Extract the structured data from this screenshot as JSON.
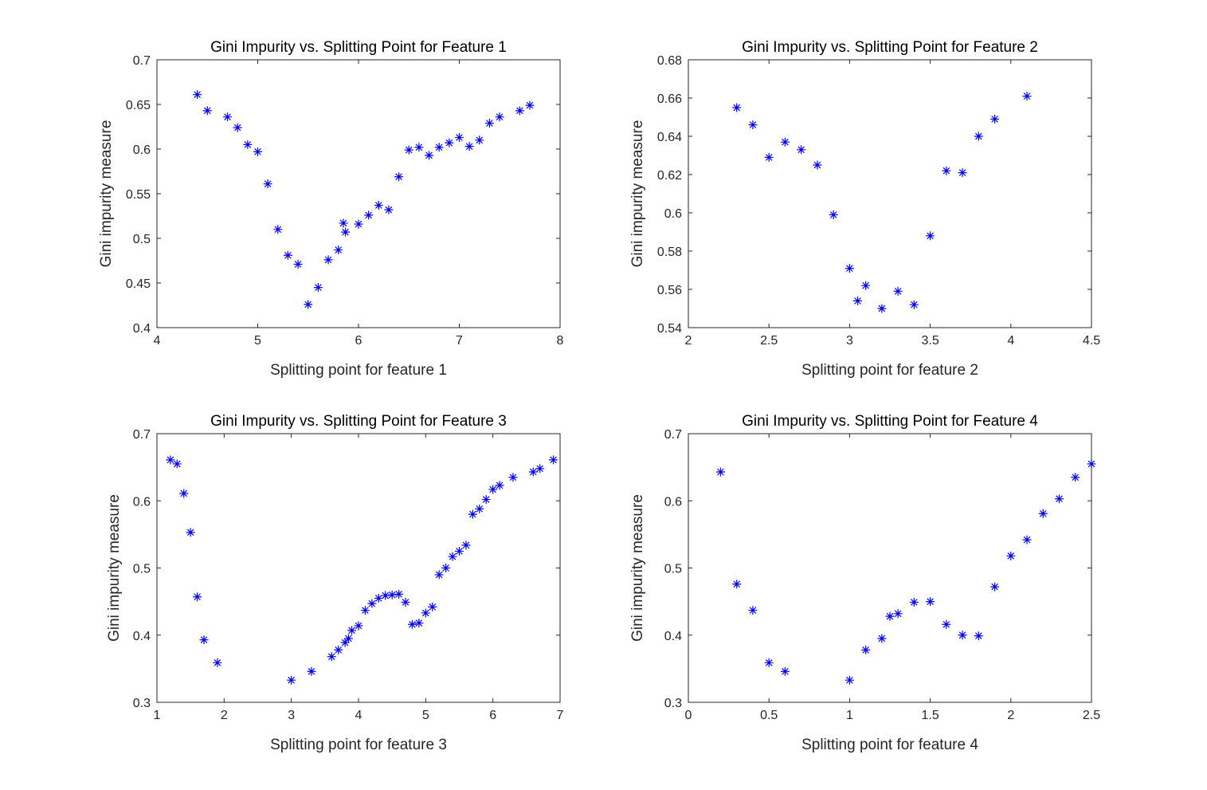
{
  "colors": {
    "marker": "#0000ff",
    "axis": "#262626",
    "background": "#ffffff"
  },
  "chart_data": [
    {
      "type": "scatter",
      "title": "Gini Impurity vs. Splitting Point for Feature 1",
      "xlabel": "Splitting point for feature 1",
      "ylabel": "Gini impurity measure",
      "xlim": [
        4,
        8
      ],
      "ylim": [
        0.4,
        0.7
      ],
      "xticks": [
        "4",
        "5",
        "6",
        "7",
        "8"
      ],
      "yticks": [
        "0.4",
        "0.45",
        "0.5",
        "0.55",
        "0.6",
        "0.65",
        "0.7"
      ],
      "marker": "asterisk",
      "grid": false,
      "points": [
        {
          "x": 4.4,
          "y": 0.661
        },
        {
          "x": 4.5,
          "y": 0.643
        },
        {
          "x": 4.7,
          "y": 0.636
        },
        {
          "x": 4.8,
          "y": 0.624
        },
        {
          "x": 4.9,
          "y": 0.605
        },
        {
          "x": 5.0,
          "y": 0.597
        },
        {
          "x": 5.1,
          "y": 0.561
        },
        {
          "x": 5.2,
          "y": 0.51
        },
        {
          "x": 5.3,
          "y": 0.481
        },
        {
          "x": 5.4,
          "y": 0.471
        },
        {
          "x": 5.5,
          "y": 0.426
        },
        {
          "x": 5.6,
          "y": 0.445
        },
        {
          "x": 5.7,
          "y": 0.476
        },
        {
          "x": 5.8,
          "y": 0.487
        },
        {
          "x": 5.85,
          "y": 0.517
        },
        {
          "x": 5.87,
          "y": 0.507
        },
        {
          "x": 6.0,
          "y": 0.516
        },
        {
          "x": 6.1,
          "y": 0.526
        },
        {
          "x": 6.2,
          "y": 0.537
        },
        {
          "x": 6.3,
          "y": 0.532
        },
        {
          "x": 6.4,
          "y": 0.569
        },
        {
          "x": 6.5,
          "y": 0.599
        },
        {
          "x": 6.6,
          "y": 0.602
        },
        {
          "x": 6.7,
          "y": 0.593
        },
        {
          "x": 6.8,
          "y": 0.602
        },
        {
          "x": 6.9,
          "y": 0.607
        },
        {
          "x": 7.0,
          "y": 0.613
        },
        {
          "x": 7.1,
          "y": 0.603
        },
        {
          "x": 7.2,
          "y": 0.61
        },
        {
          "x": 7.3,
          "y": 0.629
        },
        {
          "x": 7.4,
          "y": 0.636
        },
        {
          "x": 7.6,
          "y": 0.643
        },
        {
          "x": 7.7,
          "y": 0.649
        }
      ]
    },
    {
      "type": "scatter",
      "title": "Gini Impurity vs. Splitting Point for Feature 2",
      "xlabel": "Splitting point for feature 2",
      "ylabel": "Gini impurity measure",
      "xlim": [
        2,
        4.5
      ],
      "ylim": [
        0.54,
        0.68
      ],
      "xticks": [
        "2",
        "2.5",
        "3",
        "3.5",
        "4",
        "4.5"
      ],
      "yticks": [
        "0.54",
        "0.56",
        "0.58",
        "0.6",
        "0.62",
        "0.64",
        "0.66",
        "0.68"
      ],
      "marker": "asterisk",
      "grid": false,
      "points": [
        {
          "x": 2.3,
          "y": 0.655
        },
        {
          "x": 2.4,
          "y": 0.646
        },
        {
          "x": 2.5,
          "y": 0.629
        },
        {
          "x": 2.6,
          "y": 0.637
        },
        {
          "x": 2.7,
          "y": 0.633
        },
        {
          "x": 2.8,
          "y": 0.625
        },
        {
          "x": 2.9,
          "y": 0.599
        },
        {
          "x": 3.0,
          "y": 0.571
        },
        {
          "x": 3.05,
          "y": 0.554
        },
        {
          "x": 3.1,
          "y": 0.562
        },
        {
          "x": 3.2,
          "y": 0.55
        },
        {
          "x": 3.3,
          "y": 0.559
        },
        {
          "x": 3.4,
          "y": 0.552
        },
        {
          "x": 3.5,
          "y": 0.588
        },
        {
          "x": 3.6,
          "y": 0.622
        },
        {
          "x": 3.7,
          "y": 0.621
        },
        {
          "x": 3.8,
          "y": 0.64
        },
        {
          "x": 3.9,
          "y": 0.649
        },
        {
          "x": 4.1,
          "y": 0.661
        }
      ]
    },
    {
      "type": "scatter",
      "title": "Gini Impurity vs. Splitting Point for Feature 3",
      "xlabel": "Splitting point for feature 3",
      "ylabel": "Gini impurity measure",
      "xlim": [
        1,
        7
      ],
      "ylim": [
        0.3,
        0.7
      ],
      "xticks": [
        "1",
        "2",
        "3",
        "4",
        "5",
        "6",
        "7"
      ],
      "yticks": [
        "0.3",
        "0.4",
        "0.5",
        "0.6",
        "0.7"
      ],
      "marker": "asterisk",
      "grid": false,
      "points": [
        {
          "x": 1.2,
          "y": 0.661
        },
        {
          "x": 1.3,
          "y": 0.655
        },
        {
          "x": 1.4,
          "y": 0.611
        },
        {
          "x": 1.5,
          "y": 0.553
        },
        {
          "x": 1.6,
          "y": 0.457
        },
        {
          "x": 1.7,
          "y": 0.393
        },
        {
          "x": 1.9,
          "y": 0.359
        },
        {
          "x": 3.0,
          "y": 0.333
        },
        {
          "x": 3.3,
          "y": 0.346
        },
        {
          "x": 3.6,
          "y": 0.368
        },
        {
          "x": 3.7,
          "y": 0.378
        },
        {
          "x": 3.8,
          "y": 0.389
        },
        {
          "x": 3.85,
          "y": 0.395
        },
        {
          "x": 3.9,
          "y": 0.407
        },
        {
          "x": 4.0,
          "y": 0.414
        },
        {
          "x": 4.1,
          "y": 0.437
        },
        {
          "x": 4.2,
          "y": 0.447
        },
        {
          "x": 4.3,
          "y": 0.455
        },
        {
          "x": 4.4,
          "y": 0.459
        },
        {
          "x": 4.5,
          "y": 0.46
        },
        {
          "x": 4.6,
          "y": 0.461
        },
        {
          "x": 4.7,
          "y": 0.449
        },
        {
          "x": 4.8,
          "y": 0.416
        },
        {
          "x": 4.9,
          "y": 0.418
        },
        {
          "x": 5.0,
          "y": 0.433
        },
        {
          "x": 5.1,
          "y": 0.442
        },
        {
          "x": 5.2,
          "y": 0.49
        },
        {
          "x": 5.3,
          "y": 0.5
        },
        {
          "x": 5.4,
          "y": 0.517
        },
        {
          "x": 5.5,
          "y": 0.525
        },
        {
          "x": 5.6,
          "y": 0.534
        },
        {
          "x": 5.7,
          "y": 0.58
        },
        {
          "x": 5.8,
          "y": 0.588
        },
        {
          "x": 5.9,
          "y": 0.602
        },
        {
          "x": 6.0,
          "y": 0.617
        },
        {
          "x": 6.1,
          "y": 0.623
        },
        {
          "x": 6.3,
          "y": 0.635
        },
        {
          "x": 6.6,
          "y": 0.643
        },
        {
          "x": 6.7,
          "y": 0.648
        },
        {
          "x": 6.9,
          "y": 0.661
        }
      ]
    },
    {
      "type": "scatter",
      "title": "Gini Impurity vs. Splitting Point for Feature 4",
      "xlabel": "Splitting point for feature 4",
      "ylabel": "Gini impurity measure",
      "xlim": [
        0,
        2.5
      ],
      "ylim": [
        0.3,
        0.7
      ],
      "xticks": [
        "0",
        "0.5",
        "1",
        "1.5",
        "2",
        "2.5"
      ],
      "yticks": [
        "0.3",
        "0.4",
        "0.5",
        "0.6",
        "0.7"
      ],
      "marker": "asterisk",
      "grid": false,
      "points": [
        {
          "x": 0.2,
          "y": 0.643
        },
        {
          "x": 0.3,
          "y": 0.476
        },
        {
          "x": 0.4,
          "y": 0.437
        },
        {
          "x": 0.5,
          "y": 0.359
        },
        {
          "x": 0.6,
          "y": 0.346
        },
        {
          "x": 1.0,
          "y": 0.333
        },
        {
          "x": 1.1,
          "y": 0.378
        },
        {
          "x": 1.2,
          "y": 0.395
        },
        {
          "x": 1.25,
          "y": 0.428
        },
        {
          "x": 1.3,
          "y": 0.432
        },
        {
          "x": 1.4,
          "y": 0.449
        },
        {
          "x": 1.5,
          "y": 0.45
        },
        {
          "x": 1.6,
          "y": 0.416
        },
        {
          "x": 1.7,
          "y": 0.4
        },
        {
          "x": 1.8,
          "y": 0.399
        },
        {
          "x": 1.9,
          "y": 0.472
        },
        {
          "x": 2.0,
          "y": 0.518
        },
        {
          "x": 2.1,
          "y": 0.542
        },
        {
          "x": 2.2,
          "y": 0.581
        },
        {
          "x": 2.3,
          "y": 0.603
        },
        {
          "x": 2.4,
          "y": 0.635
        },
        {
          "x": 2.5,
          "y": 0.655
        }
      ]
    }
  ]
}
